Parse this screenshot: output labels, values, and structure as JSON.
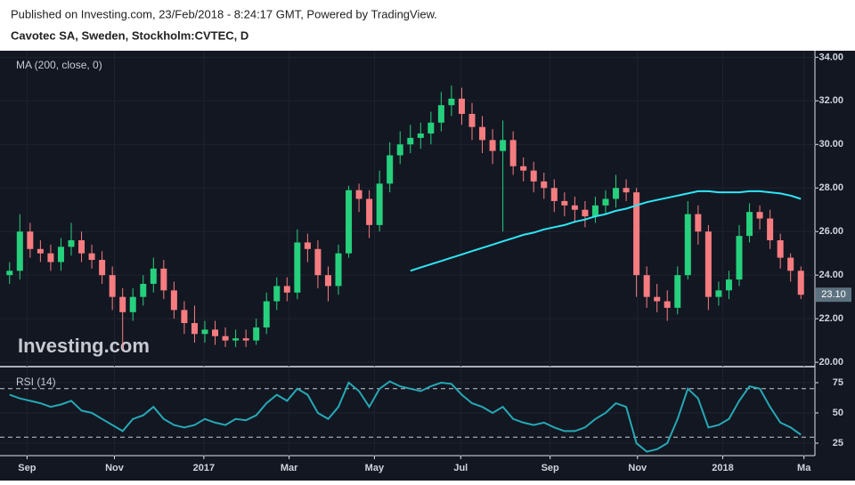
{
  "header": {
    "published": "Published on Investing.com, 23/Feb/2018 - 8:24:17 GMT, Powered by TradingView.",
    "symbol": "Cavotec SA, Sweden, Stockholm:CVTEC, D"
  },
  "chart_data": [
    {
      "type": "candlestick",
      "watermark": "Investing.com",
      "categories": [
        null,
        null,
        null,
        null,
        null,
        null,
        null,
        null,
        null,
        null,
        null,
        null,
        null,
        null,
        null,
        null,
        null,
        null,
        null,
        null,
        null,
        null,
        null,
        null,
        null,
        null,
        null,
        null,
        null,
        null,
        null,
        null,
        null,
        null,
        null,
        null,
        null,
        null,
        null,
        null,
        null,
        null,
        null,
        null,
        null,
        null,
        null,
        null,
        null,
        null,
        null,
        null,
        null,
        null,
        null,
        null,
        null,
        null,
        null,
        null,
        null,
        null,
        null,
        null,
        null,
        null,
        null,
        null,
        null,
        null,
        null,
        null,
        null,
        null,
        null,
        null,
        null,
        null
      ],
      "open": [
        24.0,
        24.2,
        26.0,
        25.2,
        25.0,
        24.6,
        25.3,
        25.6,
        25.0,
        24.7,
        24.0,
        23.0,
        22.3,
        23.0,
        23.6,
        24.3,
        23.3,
        22.4,
        21.8,
        21.3,
        21.5,
        21.2,
        21.0,
        21.1,
        21.0,
        21.6,
        22.8,
        23.5,
        23.2,
        25.5,
        25.2,
        24.0,
        23.5,
        25.0,
        27.9,
        27.5,
        26.3,
        28.2,
        29.5,
        30.0,
        30.3,
        30.5,
        31.0,
        31.8,
        32.1,
        31.4,
        30.8,
        30.2,
        29.7,
        30.2,
        29.0,
        28.8,
        28.3,
        28.0,
        27.4,
        27.2,
        27.0,
        26.7,
        27.2,
        27.5,
        28.0,
        27.8,
        24.0,
        23.0,
        22.8,
        22.5,
        24.0,
        26.8,
        26.0,
        23.0,
        23.3,
        23.8,
        25.8,
        26.9,
        26.6,
        25.6,
        24.8,
        24.2
      ],
      "high": [
        24.6,
        26.8,
        26.4,
        25.6,
        25.4,
        25.7,
        26.4,
        26.0,
        25.4,
        25.1,
        24.4,
        23.4,
        23.4,
        24.0,
        24.8,
        24.7,
        23.7,
        22.8,
        22.6,
        21.9,
        21.9,
        21.6,
        21.5,
        21.5,
        22.0,
        23.2,
        23.9,
        23.9,
        26.1,
        25.9,
        25.6,
        24.4,
        25.4,
        28.1,
        28.2,
        27.9,
        28.8,
        30.1,
        30.6,
        30.9,
        31.0,
        31.5,
        32.4,
        32.7,
        32.6,
        31.9,
        31.3,
        30.7,
        31.1,
        30.6,
        29.4,
        29.2,
        28.7,
        28.4,
        27.8,
        27.6,
        27.4,
        27.6,
        27.9,
        28.6,
        28.4,
        28.0,
        24.4,
        23.6,
        23.3,
        24.4,
        27.4,
        27.2,
        26.3,
        23.7,
        24.2,
        26.3,
        27.3,
        27.2,
        27.0,
        25.9,
        25.0,
        24.4
      ],
      "low": [
        23.6,
        23.8,
        24.8,
        24.6,
        24.2,
        24.2,
        24.9,
        24.6,
        24.3,
        23.6,
        22.4,
        20.6,
        21.9,
        22.6,
        23.2,
        22.9,
        22.0,
        21.3,
        20.9,
        20.9,
        20.8,
        20.7,
        20.7,
        20.7,
        20.8,
        21.3,
        22.4,
        22.8,
        22.9,
        24.6,
        23.4,
        22.8,
        23.1,
        24.8,
        26.9,
        25.7,
        26.0,
        27.8,
        29.1,
        29.6,
        29.8,
        30.0,
        30.6,
        31.3,
        30.9,
        30.2,
        29.6,
        29.1,
        26.0,
        28.6,
        28.3,
        27.8,
        27.5,
        26.9,
        26.7,
        26.4,
        26.2,
        26.4,
        26.8,
        27.1,
        27.4,
        23.0,
        22.5,
        22.3,
        21.9,
        22.2,
        23.8,
        25.4,
        22.4,
        22.6,
        22.9,
        23.5,
        25.5,
        26.1,
        25.2,
        24.3,
        23.7,
        22.9
      ],
      "close": [
        24.2,
        26.0,
        25.2,
        25.0,
        24.6,
        25.3,
        25.6,
        25.0,
        24.7,
        24.0,
        23.0,
        22.3,
        23.0,
        23.6,
        24.3,
        23.3,
        22.4,
        21.8,
        21.3,
        21.5,
        21.2,
        21.0,
        21.1,
        21.0,
        21.6,
        22.8,
        23.5,
        23.2,
        25.5,
        25.2,
        24.0,
        23.5,
        25.0,
        27.9,
        27.5,
        26.3,
        28.2,
        29.5,
        30.0,
        30.3,
        30.5,
        31.0,
        31.8,
        32.1,
        31.4,
        30.8,
        30.2,
        29.7,
        30.2,
        29.0,
        28.8,
        28.3,
        28.0,
        27.4,
        27.2,
        27.0,
        26.7,
        27.2,
        27.5,
        28.0,
        27.8,
        24.0,
        23.0,
        22.8,
        22.5,
        24.0,
        26.8,
        26.0,
        23.0,
        23.3,
        23.8,
        25.8,
        26.9,
        26.6,
        25.6,
        24.8,
        24.2,
        23.1
      ],
      "up_color": "#26d07c",
      "down_color": "#f77c80",
      "series": [
        {
          "name": "MA (200, close, 0)",
          "color": "#2ee6f5",
          "values": [
            null,
            null,
            null,
            null,
            null,
            null,
            null,
            null,
            null,
            null,
            null,
            null,
            null,
            null,
            null,
            null,
            null,
            null,
            null,
            null,
            null,
            null,
            null,
            null,
            null,
            null,
            null,
            null,
            null,
            null,
            null,
            null,
            null,
            null,
            null,
            null,
            null,
            null,
            null,
            24.2,
            24.35,
            24.5,
            24.65,
            24.8,
            24.95,
            25.1,
            25.25,
            25.4,
            25.55,
            25.7,
            25.85,
            25.95,
            26.1,
            26.2,
            26.3,
            26.45,
            26.55,
            26.7,
            26.8,
            26.95,
            27.05,
            27.2,
            27.35,
            27.45,
            27.55,
            27.65,
            27.75,
            27.85,
            27.85,
            27.8,
            27.8,
            27.8,
            27.85,
            27.85,
            27.8,
            27.75,
            27.65,
            27.5
          ]
        }
      ],
      "last_price": {
        "value": 23.1,
        "label": "23.10"
      },
      "ylim": [
        19.8,
        34.3
      ],
      "yticks": [
        {
          "value": 20,
          "label": "20.00"
        },
        {
          "value": 22,
          "label": "22.00"
        },
        {
          "value": 24,
          "label": "24.00"
        },
        {
          "value": 26,
          "label": "26.00"
        },
        {
          "value": 28,
          "label": "28.00"
        },
        {
          "value": 30,
          "label": "30.00"
        },
        {
          "value": 32,
          "label": "32.00"
        },
        {
          "value": 34,
          "label": "34.00"
        }
      ],
      "xticks": [
        {
          "value": 1.7,
          "label": "Sep"
        },
        {
          "value": 10.2,
          "label": "Nov"
        },
        {
          "value": 18.9,
          "label": "2017"
        },
        {
          "value": 27.2,
          "label": "Mar"
        },
        {
          "value": 35.5,
          "label": "May"
        },
        {
          "value": 43.9,
          "label": "Jul"
        },
        {
          "value": 52.6,
          "label": "Sep"
        },
        {
          "value": 61.1,
          "label": "Nov"
        },
        {
          "value": 69.4,
          "label": "2018"
        },
        {
          "value": 77.3,
          "label": "Ma"
        }
      ],
      "grid": true
    },
    {
      "type": "line",
      "series": [
        {
          "name": "RSI (14)",
          "color": "#26a8b5",
          "values": [
            65,
            62,
            60,
            58,
            55,
            57,
            60,
            52,
            50,
            45,
            40,
            35,
            45,
            48,
            55,
            45,
            40,
            38,
            40,
            45,
            42,
            40,
            45,
            44,
            48,
            58,
            65,
            60,
            70,
            65,
            50,
            45,
            55,
            75,
            68,
            55,
            70,
            76,
            72,
            70,
            68,
            72,
            75,
            74,
            65,
            58,
            55,
            50,
            55,
            45,
            42,
            40,
            42,
            38,
            35,
            35,
            38,
            45,
            50,
            58,
            55,
            25,
            18,
            20,
            25,
            45,
            70,
            62,
            38,
            40,
            45,
            60,
            72,
            70,
            55,
            42,
            38,
            32
          ]
        }
      ],
      "ylim": [
        14.7,
        87.5
      ],
      "yticks": [
        25,
        50,
        75
      ],
      "bands": [
        30,
        70
      ],
      "grid": true
    }
  ]
}
